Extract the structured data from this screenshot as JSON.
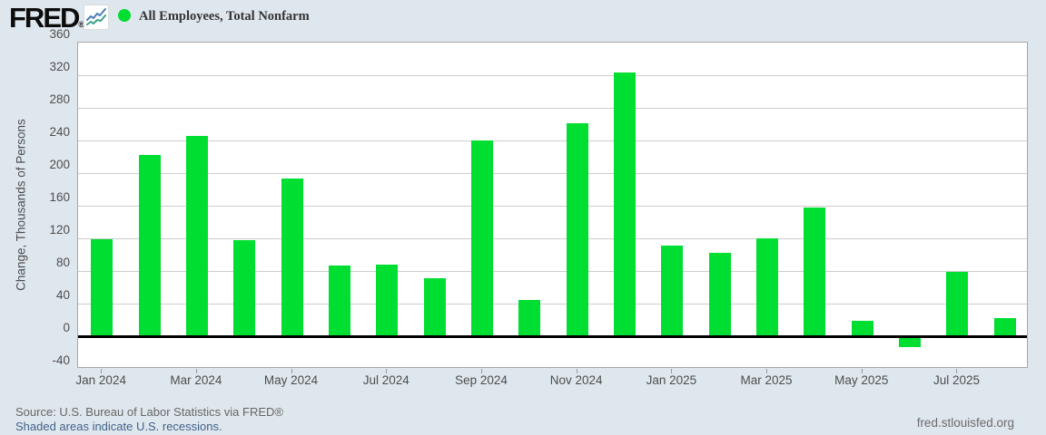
{
  "header": {
    "logo_text": "FRED",
    "logo_registered": "®",
    "legend_label": "All Employees, Total Nonfarm"
  },
  "colors": {
    "bar_green": "#00de31",
    "page_background": "#dfe7ee",
    "link_blue": "#41628a",
    "icon_line_blue": "#4a7eb5",
    "icon_line_teal": "#3fa08c"
  },
  "footer": {
    "source": "Source: U.S. Bureau of Labor Statistics via FRED®",
    "recession_note": "Shaded areas indicate U.S. recessions.",
    "site": "fred.stlouisfed.org"
  },
  "chart_data": {
    "type": "bar",
    "title": "All Employees, Total Nonfarm",
    "xlabel": "",
    "ylabel": "Change, Thousands of Persons",
    "x": [
      "Jan 2024",
      "Feb 2024",
      "Mar 2024",
      "Apr 2024",
      "May 2024",
      "Jun 2024",
      "Jul 2024",
      "Aug 2024",
      "Sep 2024",
      "Oct 2024",
      "Nov 2024",
      "Dec 2024",
      "Jan 2025",
      "Feb 2025",
      "Mar 2025",
      "Apr 2025",
      "May 2025",
      "Jun 2025",
      "Jul 2025",
      "Aug 2025"
    ],
    "values": [
      119,
      222,
      246,
      118,
      193,
      87,
      88,
      71,
      240,
      44,
      261,
      323,
      111,
      102,
      120,
      158,
      19,
      -13,
      79,
      22
    ],
    "ylim": [
      -40,
      360
    ],
    "y_ticks": [
      360,
      320,
      280,
      240,
      200,
      160,
      120,
      80,
      40,
      0,
      -40
    ],
    "x_tick_labels": [
      "Jan 2024",
      "Mar 2024",
      "May 2024",
      "Jul 2024",
      "Sep 2024",
      "Nov 2024",
      "Jan 2025",
      "Mar 2025",
      "May 2025",
      "Jul 2025"
    ],
    "grid": true,
    "legend_position": "top",
    "bar_color": "#00de31"
  }
}
